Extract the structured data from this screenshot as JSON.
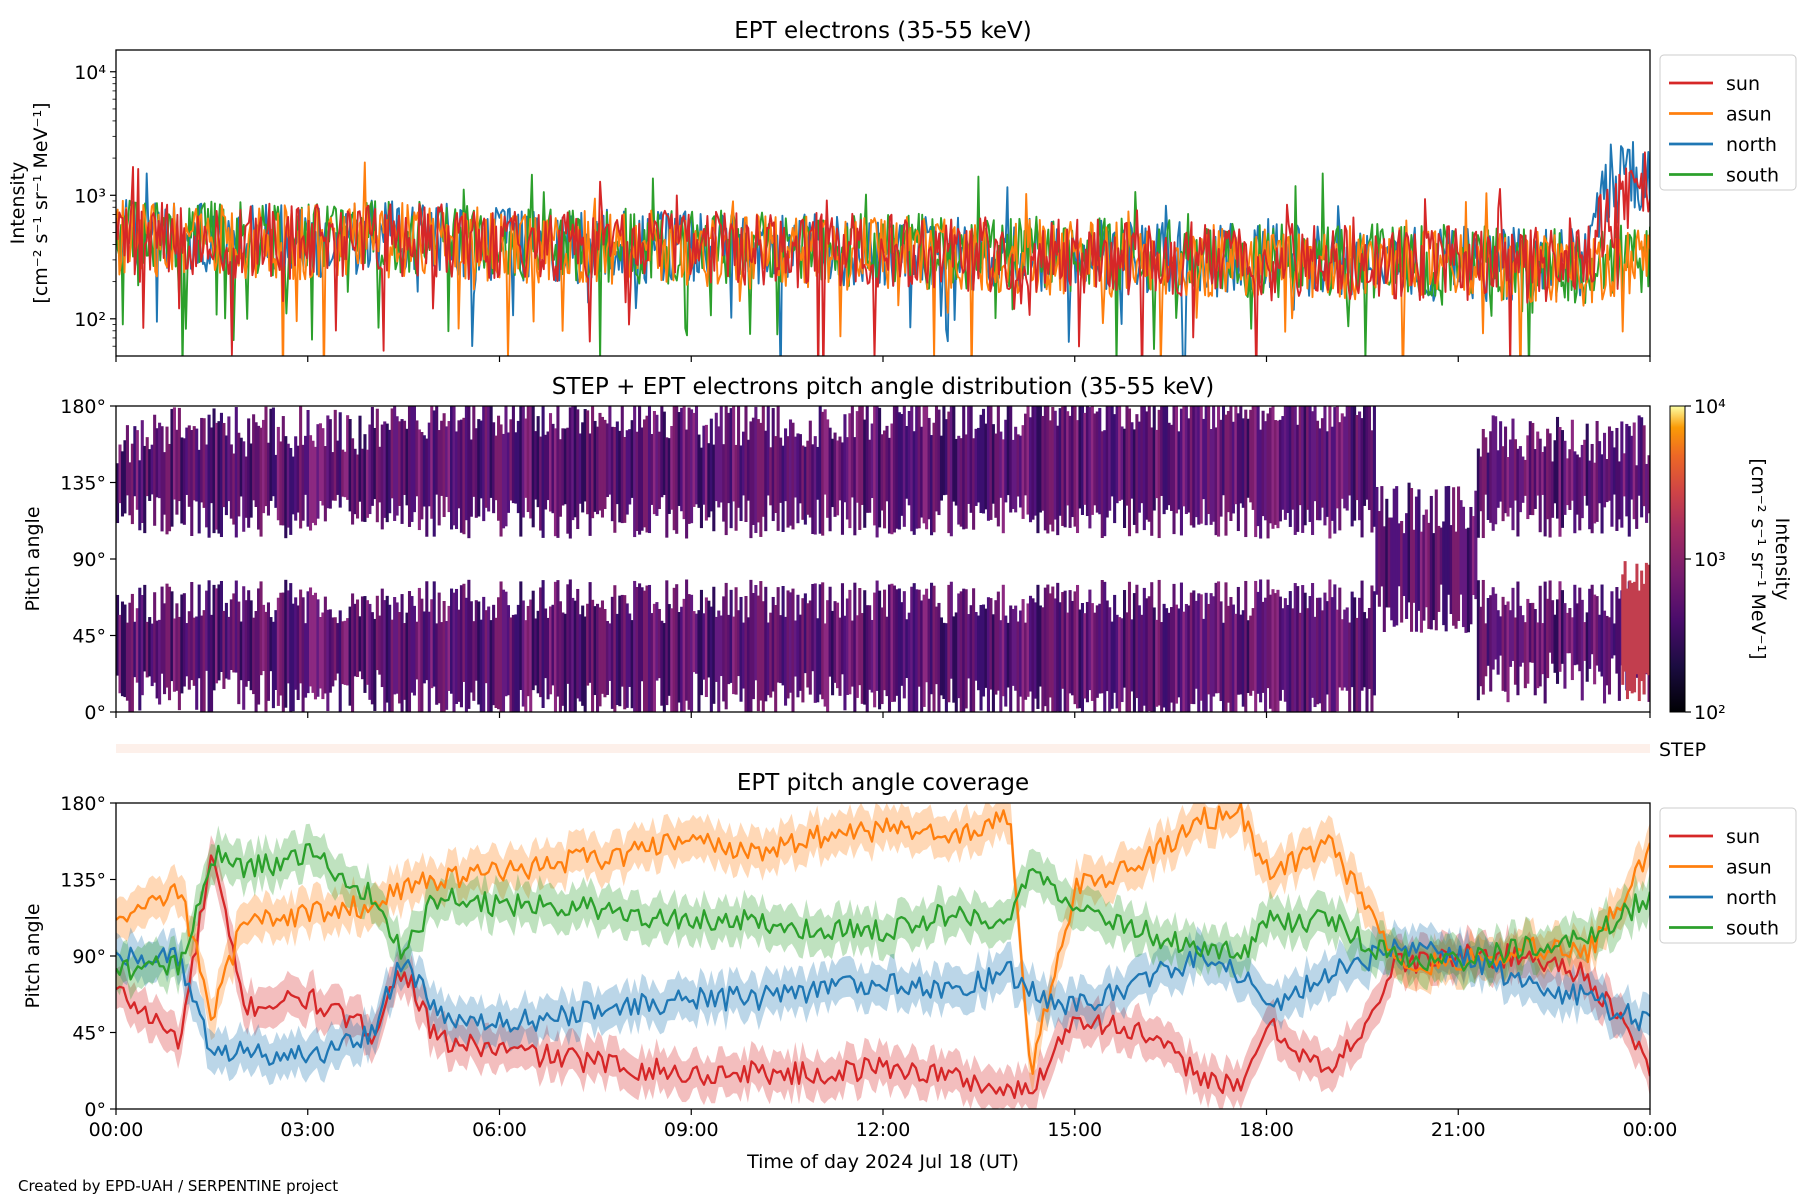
{
  "figure": {
    "credit": "Created by EPD-UAH / SERPENTINE project",
    "xlabel": "Time of day 2024 Jul 18 (UT)",
    "xticks": [
      "00:00",
      "03:00",
      "06:00",
      "09:00",
      "12:00",
      "15:00",
      "18:00",
      "21:00",
      "00:00"
    ]
  },
  "colors": {
    "sun": "#d62728",
    "asun": "#ff7f0e",
    "north": "#1f77b4",
    "south": "#2ca02c"
  },
  "chart_data": [
    {
      "type": "line",
      "title": "EPT electrons (35-55 keV)",
      "ylabel_line1": "Intensity",
      "ylabel_line2": "[cm⁻² s⁻¹ sr⁻¹ MeV⁻¹]",
      "yscale": "log",
      "ylim": [
        50,
        15000
      ],
      "yticks": [
        "10²",
        "10³",
        "10⁴"
      ],
      "ytick_values": [
        100,
        1000,
        10000
      ],
      "x_unit": "hours since 00:00 UT",
      "xlim": [
        0,
        24
      ],
      "legend_position": "outside-right",
      "series": [
        {
          "name": "north",
          "x": [
            0,
            1,
            2,
            3,
            4,
            5,
            6,
            7,
            8,
            9,
            10,
            11,
            12,
            13,
            14,
            15,
            16,
            17,
            18,
            19,
            20,
            21,
            22,
            23,
            23.5,
            24
          ],
          "values": [
            480,
            450,
            420,
            430,
            460,
            440,
            400,
            390,
            380,
            370,
            360,
            360,
            350,
            340,
            330,
            320,
            310,
            300,
            300,
            290,
            280,
            280,
            270,
            300,
            1700,
            1400
          ]
        },
        {
          "name": "south",
          "x": [
            0,
            1,
            2,
            3,
            4,
            5,
            6,
            7,
            8,
            9,
            10,
            11,
            12,
            13,
            14,
            15,
            16,
            17,
            18,
            19,
            20,
            21,
            22,
            23,
            24
          ],
          "values": [
            500,
            470,
            450,
            440,
            470,
            450,
            420,
            400,
            390,
            380,
            370,
            370,
            360,
            350,
            340,
            330,
            320,
            310,
            300,
            300,
            290,
            290,
            280,
            270,
            300
          ]
        },
        {
          "name": "asun",
          "x": [
            0,
            1,
            2,
            3,
            4,
            5,
            6,
            7,
            8,
            9,
            10,
            11,
            12,
            13,
            14,
            15,
            16,
            17,
            18,
            19,
            20,
            21,
            22,
            23,
            24
          ],
          "values": [
            460,
            430,
            410,
            420,
            440,
            420,
            390,
            380,
            370,
            360,
            350,
            350,
            340,
            330,
            320,
            310,
            300,
            300,
            290,
            280,
            280,
            270,
            270,
            260,
            300
          ]
        },
        {
          "name": "sun",
          "x": [
            0,
            1,
            2,
            3,
            4,
            5,
            6,
            7,
            8,
            9,
            10,
            11,
            12,
            13,
            14,
            15,
            16,
            17,
            18,
            19,
            20,
            21,
            22,
            23,
            24
          ],
          "values": [
            470,
            440,
            430,
            420,
            450,
            430,
            400,
            390,
            380,
            370,
            360,
            360,
            350,
            340,
            330,
            320,
            310,
            300,
            300,
            290,
            280,
            280,
            270,
            290,
            1300
          ]
        }
      ]
    },
    {
      "type": "heatmap",
      "title": "STEP + EPT electrons pitch angle distribution (35-55 keV)",
      "ylabel": "Pitch angle",
      "ylim": [
        0,
        180
      ],
      "yticks": [
        "0°",
        "45°",
        "90°",
        "135°",
        "180°"
      ],
      "x_unit": "hours since 00:00 UT",
      "xlim": [
        0,
        24
      ],
      "colorbar": {
        "label": "Intensity",
        "units": "[cm⁻² s⁻¹ sr⁻¹ MeV⁻¹]",
        "scale": "log",
        "range": [
          100,
          10000
        ],
        "ticks": [
          "10²",
          "10³",
          "10⁴"
        ],
        "colormap": "inferno"
      },
      "coverage_bands": [
        {
          "x_start": 0,
          "x_end": 0.5,
          "lo": 10,
          "hi": 160
        },
        {
          "x_start": 0.5,
          "x_end": 4.2,
          "lo": 10,
          "hi": 165
        },
        {
          "x_start": 4.2,
          "x_end": 8.9,
          "lo": 5,
          "hi": 175
        },
        {
          "x_start": 8.9,
          "x_end": 11.5,
          "lo": 10,
          "hi": 170
        },
        {
          "x_start": 11.5,
          "x_end": 14.3,
          "lo": 5,
          "hi": 175
        },
        {
          "x_start": 14.3,
          "x_end": 17.6,
          "lo": 0,
          "hi": 180
        },
        {
          "x_start": 17.6,
          "x_end": 19.7,
          "lo": 0,
          "hi": 180
        },
        {
          "x_start": 19.7,
          "x_end": 21.3,
          "lo": 60,
          "hi": 120
        },
        {
          "x_start": 21.3,
          "x_end": 24,
          "lo": 20,
          "hi": 160
        }
      ],
      "step_label": "STEP"
    },
    {
      "type": "line",
      "title": "EPT pitch angle coverage",
      "ylabel": "Pitch angle",
      "ylim": [
        0,
        180
      ],
      "yticks": [
        "0°",
        "45°",
        "90°",
        "135°",
        "180°"
      ],
      "x_unit": "hours since 00:00 UT",
      "xlim": [
        0,
        24
      ],
      "legend_position": "outside-right",
      "series": [
        {
          "name": "sun",
          "x": [
            0,
            1,
            1.5,
            2,
            3,
            4,
            4.5,
            5,
            6,
            7,
            8,
            9,
            10,
            11,
            12,
            13,
            14,
            14.3,
            15,
            16,
            17,
            17.6,
            18,
            19,
            19.7,
            20,
            21,
            22,
            23,
            24
          ],
          "values": [
            70,
            40,
            150,
            60,
            65,
            45,
            85,
            40,
            35,
            30,
            25,
            20,
            22,
            20,
            25,
            20,
            10,
            10,
            55,
            45,
            20,
            10,
            50,
            20,
            60,
            85,
            90,
            90,
            80,
            25
          ]
        },
        {
          "name": "asun",
          "x": [
            0,
            1,
            1.5,
            2,
            3,
            4,
            4.5,
            5,
            6,
            7,
            8,
            9,
            10,
            11,
            12,
            13,
            14,
            14.3,
            15,
            16,
            17,
            17.6,
            18,
            19,
            19.7,
            20,
            21,
            22,
            23,
            24
          ],
          "values": [
            110,
            130,
            55,
            110,
            115,
            120,
            130,
            135,
            140,
            145,
            150,
            160,
            150,
            160,
            165,
            160,
            170,
            20,
            130,
            145,
            170,
            175,
            140,
            155,
            110,
            85,
            85,
            95,
            90,
            150
          ]
        },
        {
          "name": "north",
          "x": [
            0,
            1,
            1.5,
            2,
            3,
            4,
            4.5,
            5,
            6,
            7,
            8,
            9,
            10,
            11,
            12,
            13,
            14,
            14.3,
            15,
            16,
            17,
            17.6,
            18,
            19,
            19.7,
            20,
            21,
            22,
            23,
            24
          ],
          "values": [
            90,
            90,
            30,
            35,
            30,
            45,
            90,
            55,
            50,
            55,
            60,
            65,
            65,
            70,
            75,
            70,
            80,
            70,
            60,
            75,
            90,
            80,
            60,
            80,
            90,
            95,
            90,
            75,
            65,
            50
          ]
        },
        {
          "name": "south",
          "x": [
            0,
            1,
            1.5,
            2,
            3,
            4,
            4.5,
            5,
            6,
            7,
            8,
            9,
            10,
            11,
            12,
            13,
            14,
            14.3,
            15,
            16,
            17,
            17.6,
            18,
            19,
            19.7,
            20,
            21,
            22,
            23,
            24
          ],
          "values": [
            80,
            85,
            150,
            140,
            150,
            125,
            90,
            125,
            120,
            120,
            115,
            110,
            110,
            105,
            105,
            115,
            110,
            140,
            115,
            105,
            95,
            90,
            110,
            110,
            95,
            90,
            85,
            95,
            100,
            125
          ]
        }
      ]
    }
  ]
}
